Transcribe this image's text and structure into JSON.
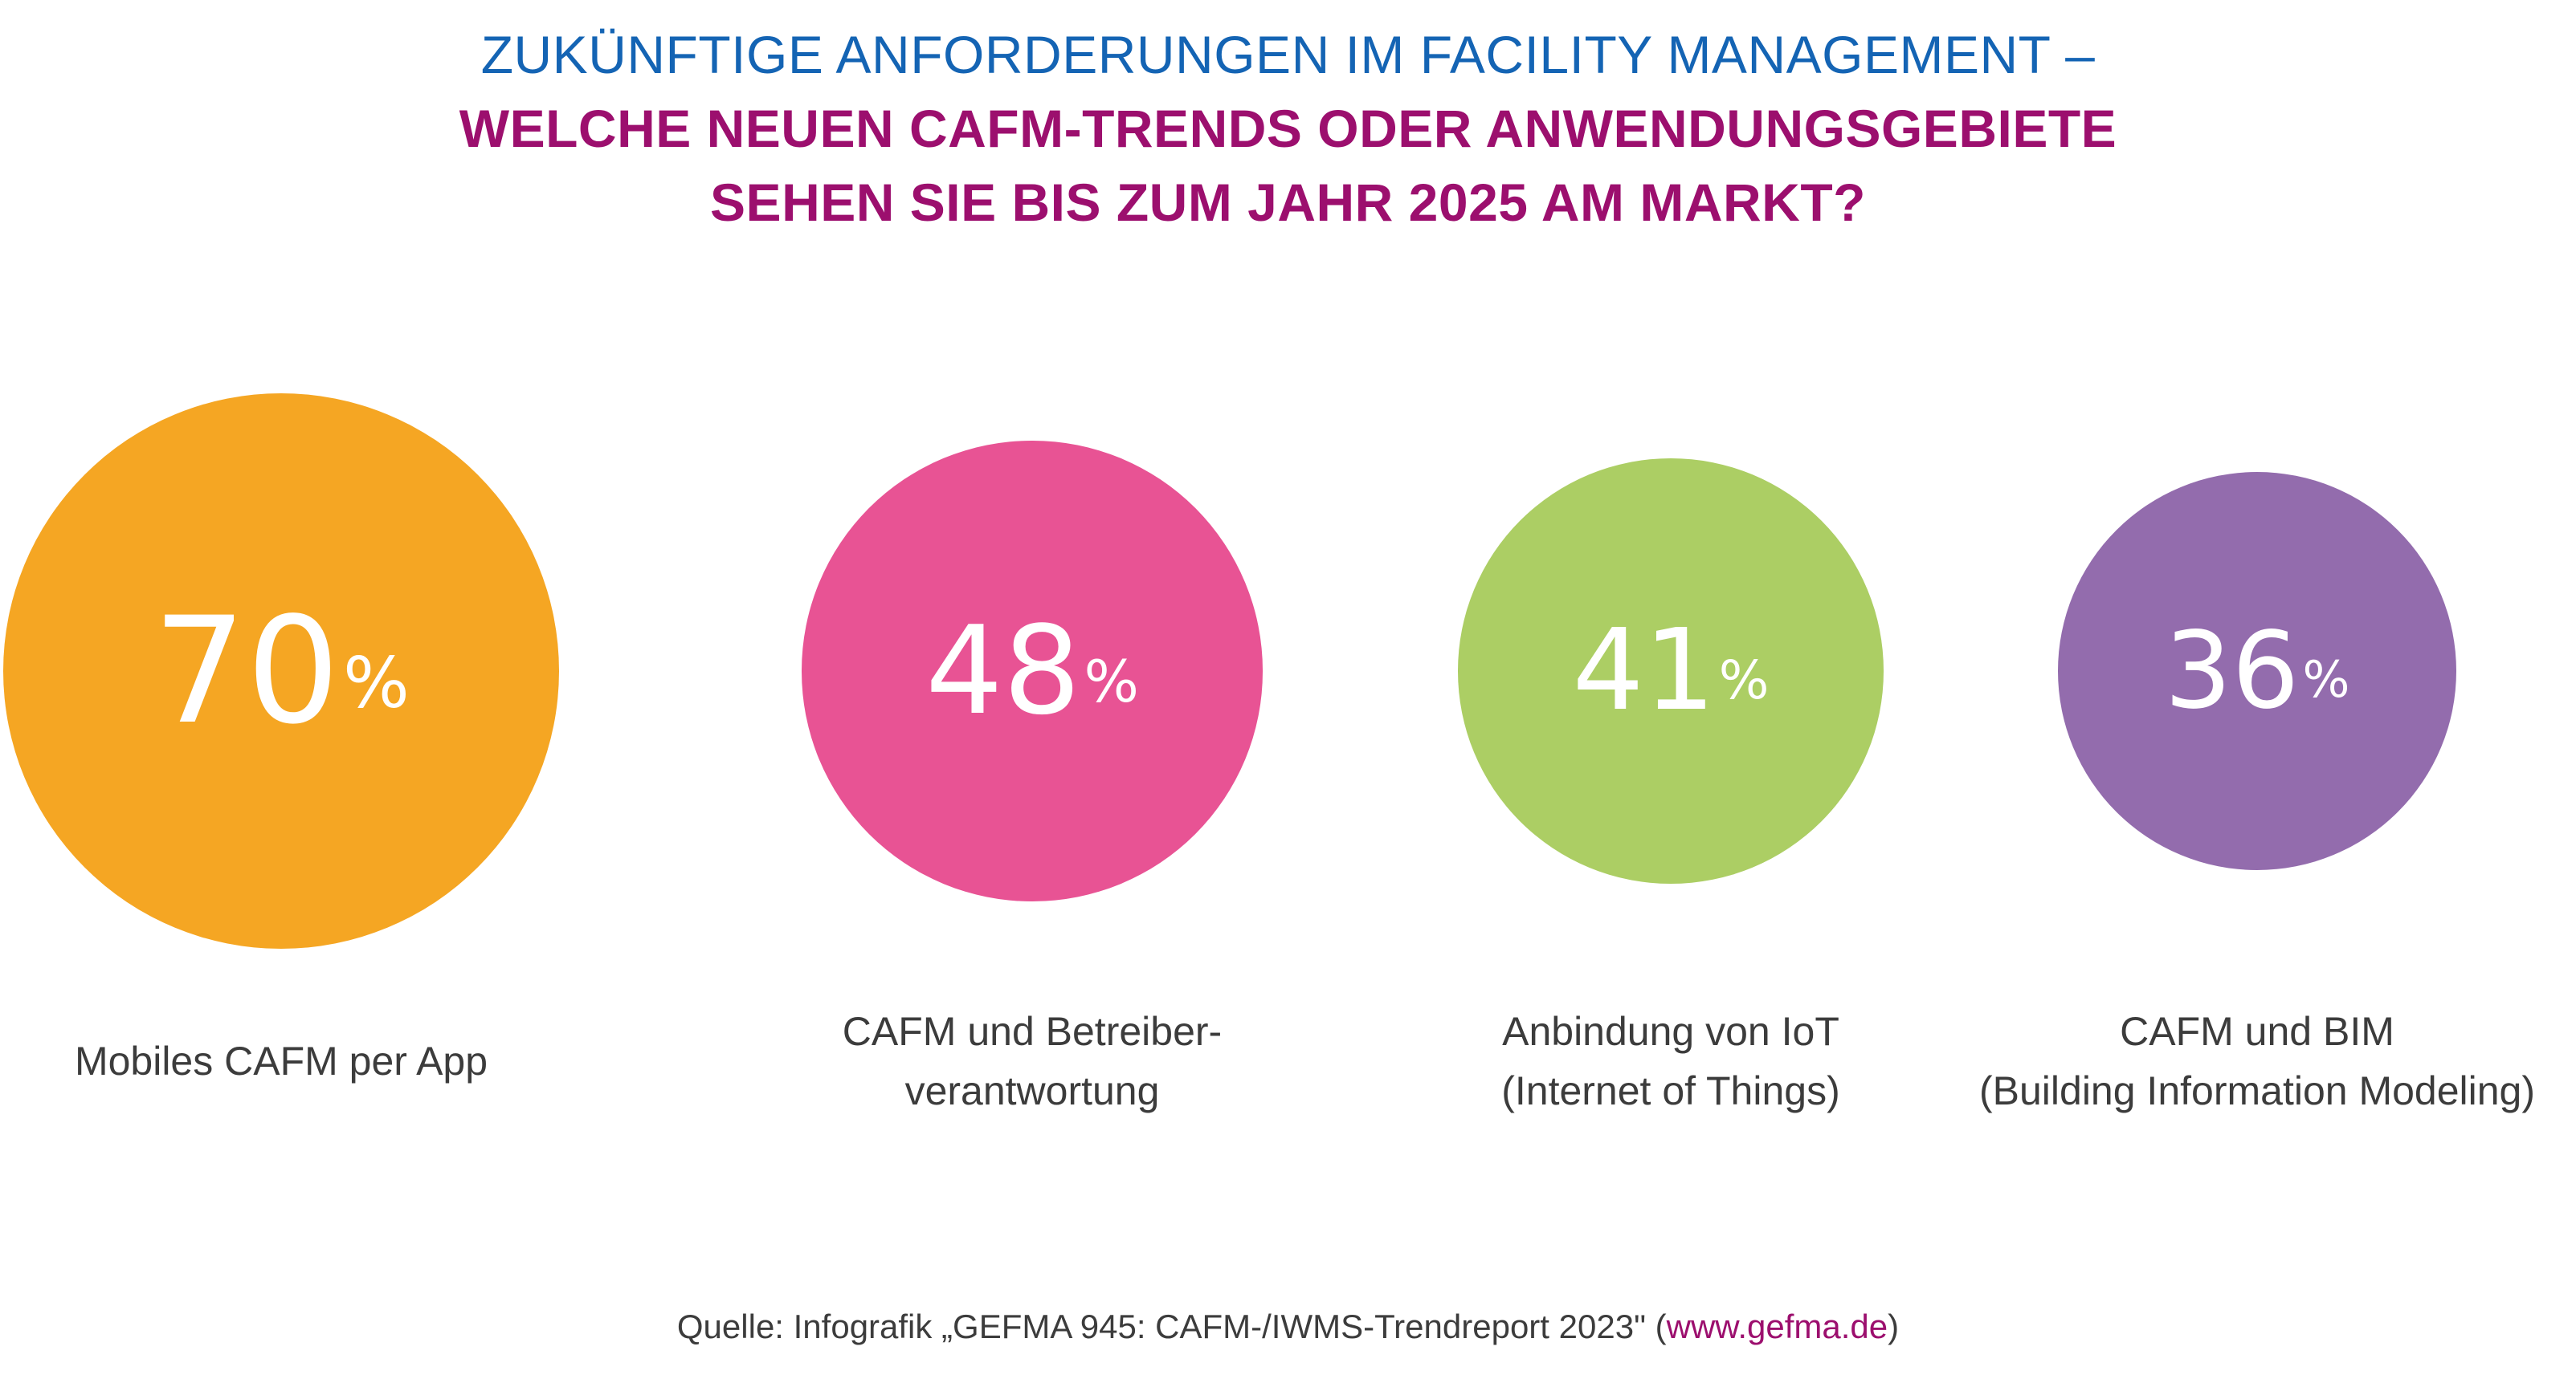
{
  "title": {
    "line1": "ZUKÜNFTIGE ANFORDERUNGEN IM FACILITY MANAGEMENT –",
    "line2": "WELCHE NEUEN CAFM-TRENDS ODER ANWENDUNGSGEBIETE",
    "line3": "SEHEN SIE BIS ZUM JAHR 2025 AM MARKT?"
  },
  "chart_data": {
    "type": "bubble",
    "unit": "%",
    "items": [
      {
        "value": 70,
        "value_text": "70",
        "label_lines": [
          "Mobiles CAFM per App"
        ],
        "color": "#f5a623"
      },
      {
        "value": 48,
        "value_text": "48",
        "label_lines": [
          "CAFM und Betreiber-",
          "verantwortung"
        ],
        "color": "#e85394"
      },
      {
        "value": 41,
        "value_text": "41",
        "label_lines": [
          "Anbindung von IoT",
          "(Internet of Things)"
        ],
        "color": "#acce64"
      },
      {
        "value": 36,
        "value_text": "36",
        "label_lines": [
          "CAFM und BIM",
          "(Building Information Modeling)"
        ],
        "color": "#936cad"
      }
    ]
  },
  "source": {
    "prefix": "Quelle: Infografik „GEFMA 945: CAFM-/IWMS-Trendreport 2023\" (",
    "link": "www.gefma.de",
    "suffix": ")"
  },
  "colors": {
    "title_blue": "#1464b4",
    "title_magenta": "#9c0f6e",
    "label_text": "#3c3c3c"
  }
}
